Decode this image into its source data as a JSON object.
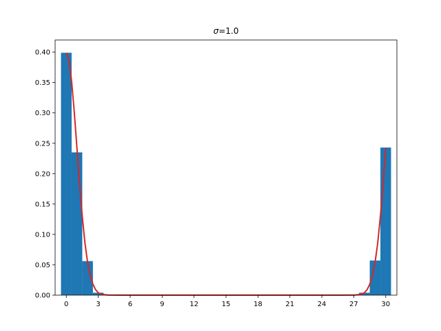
{
  "chart_data": {
    "type": "bar",
    "title": "σ=1.0",
    "title_symbol": "σ",
    "title_value": "=1.0",
    "xlabel": "",
    "ylabel": "",
    "xlim": [
      -1.05,
      31.05
    ],
    "ylim": [
      0,
      0.42
    ],
    "xticks": [
      0,
      3,
      6,
      9,
      12,
      15,
      18,
      21,
      24,
      27,
      30
    ],
    "xtick_labels": [
      "0",
      "3",
      "6",
      "9",
      "12",
      "15",
      "18",
      "21",
      "24",
      "27",
      "30"
    ],
    "yticks": [
      0,
      0.05,
      0.1,
      0.15,
      0.2,
      0.25,
      0.3,
      0.35,
      0.4
    ],
    "ytick_labels": [
      "0.00",
      "0.05",
      "0.10",
      "0.15",
      "0.20",
      "0.25",
      "0.30",
      "0.35",
      "0.40"
    ],
    "grid": false,
    "legend": "none",
    "bars": {
      "bin_width": 1,
      "centers": [
        0,
        1,
        2,
        3,
        28,
        29,
        30
      ],
      "values": [
        0.399,
        0.235,
        0.056,
        0.004,
        0.004,
        0.057,
        0.243
      ]
    },
    "curve": {
      "x": [
        0,
        0.25,
        0.5,
        0.75,
        1,
        1.25,
        1.5,
        1.75,
        2,
        2.25,
        2.5,
        2.75,
        3,
        3.25,
        3.5,
        3.75,
        4,
        5,
        10,
        15,
        20,
        25,
        26,
        27,
        27.25,
        27.5,
        27.75,
        28,
        28.25,
        28.5,
        28.75,
        29,
        29.25,
        29.5,
        29.75,
        30
      ],
      "y": [
        0.399,
        0.387,
        0.352,
        0.301,
        0.242,
        0.183,
        0.13,
        0.086,
        0.054,
        0.032,
        0.018,
        0.009,
        0.004,
        0.002,
        0.001,
        0.0004,
        0.0001,
        0,
        0,
        0,
        0,
        0,
        0,
        0.0001,
        0.0004,
        0.001,
        0.002,
        0.004,
        0.009,
        0.018,
        0.032,
        0.054,
        0.086,
        0.13,
        0.183,
        0.242
      ]
    },
    "colors": {
      "bar": "#1f77b4",
      "curve": "#d62728",
      "axis": "#000000"
    }
  }
}
